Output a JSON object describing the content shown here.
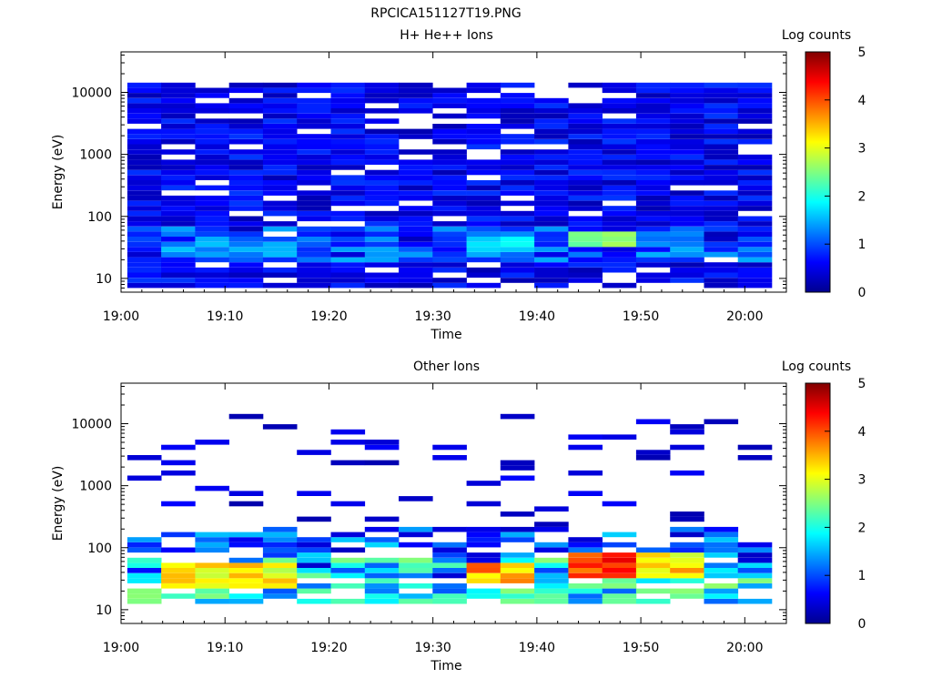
{
  "figure_title": "RPCICA151127T19.PNG",
  "chart_data": [
    {
      "type": "heatmap",
      "title": "H+ He++ Ions",
      "xlabel": "Time",
      "ylabel": "Energy (eV)",
      "y_scale": "log",
      "ylim": [
        6,
        45000
      ],
      "x_ticks": [
        "19:00",
        "19:10",
        "19:20",
        "19:30",
        "19:40",
        "19:50",
        "20:00"
      ],
      "y_ticks": [
        {
          "value": 10,
          "label": "10"
        },
        {
          "value": 100,
          "label": "100"
        },
        {
          "value": 1000,
          "label": "1000"
        },
        {
          "value": 10000,
          "label": "10000"
        }
      ],
      "colorbar": {
        "label": "Log counts",
        "min": 0,
        "max": 5,
        "ticks": [
          "0",
          "1",
          "2",
          "3",
          "4",
          "5"
        ]
      },
      "time_bins": [
        "19:00",
        "19:03",
        "19:07",
        "19:10",
        "19:13",
        "19:17",
        "19:20",
        "19:23",
        "19:27",
        "19:30",
        "19:33",
        "19:37",
        "19:40",
        "19:43",
        "19:47",
        "19:50",
        "19:53",
        "19:57"
      ],
      "data_description": "Each column is a time bin (18 bins from 19:00 to 20:02). Values are log10 counts per energy channel; sparse dark-blue (≈0.2-0.8) everywhere above 100 eV, with enhancements to ~1.5-2.8 near 25-40 eV.",
      "peaks": [
        {
          "time": "19:07",
          "energy_eV": 28,
          "value": 1.6
        },
        {
          "time": "19:13",
          "energy_eV": 28,
          "value": 1.6
        },
        {
          "time": "19:37",
          "energy_eV": 30,
          "value": 2.0
        },
        {
          "time": "19:47",
          "energy_eV": 40,
          "value": 2.7
        },
        {
          "time": "19:53",
          "energy_eV": 38,
          "value": 1.5
        }
      ]
    },
    {
      "type": "heatmap",
      "title": "Other Ions",
      "xlabel": "Time",
      "ylabel": "Energy (eV)",
      "y_scale": "log",
      "ylim": [
        6,
        45000
      ],
      "x_ticks": [
        "19:00",
        "19:10",
        "19:20",
        "19:30",
        "19:40",
        "19:50",
        "20:00"
      ],
      "y_ticks": [
        {
          "value": 10,
          "label": "10"
        },
        {
          "value": 100,
          "label": "100"
        },
        {
          "value": 1000,
          "label": "1000"
        },
        {
          "value": 10000,
          "label": "10000"
        }
      ],
      "colorbar": {
        "label": "Log counts",
        "min": 0,
        "max": 5,
        "ticks": [
          "0",
          "1",
          "2",
          "3",
          "4",
          "5"
        ]
      },
      "data_description": "Sparse high-energy counts (≈0.2) with strong low-energy band 15-60 eV reaching ~4.5 near 19:47.",
      "peaks": [
        {
          "time": "19:07",
          "energy_eV": 32,
          "value": 3.6
        },
        {
          "time": "19:13",
          "energy_eV": 32,
          "value": 3.6
        },
        {
          "time": "19:37",
          "energy_eV": 35,
          "value": 4.0
        },
        {
          "time": "19:47",
          "energy_eV": 45,
          "value": 4.6
        },
        {
          "time": "19:53",
          "energy_eV": 50,
          "value": 3.7
        }
      ]
    }
  ]
}
